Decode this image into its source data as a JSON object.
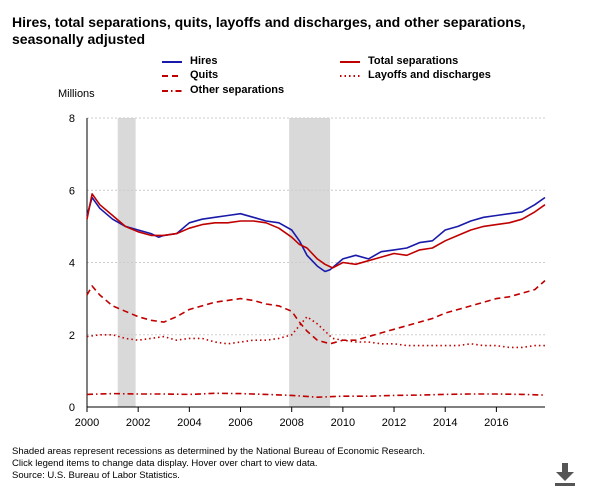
{
  "title_line1": "Hires, total separations, quits, layoffs and discharges, and other separations,",
  "title_line2": "seasonally adjusted",
  "legend": {
    "hires": "Hires",
    "total": "Total separations",
    "quits": "Quits",
    "layoffs": "Layoffs and discharges",
    "other": "Other separations"
  },
  "unit_label": "Millions",
  "notes": {
    "line1": "Shaded areas represent recessions as determined by the National Bureau of Economic Research.",
    "line2": "Click legend items to change data display. Hover over chart to view data.",
    "line3": "Source: U.S. Bureau of Labor Statistics."
  },
  "colors": {
    "hires": "#1a1aaa",
    "separations": "#c00000",
    "recession": "#d9d9d9"
  },
  "icons": {
    "download": "download-icon"
  },
  "chart_data": {
    "type": "line",
    "xlim": [
      2000,
      2017.9
    ],
    "ylim": [
      0,
      8
    ],
    "yticks": [
      "0",
      "2",
      "4",
      "6",
      "8"
    ],
    "xticks": [
      {
        "value": 2000,
        "label": "2000"
      },
      {
        "value": 2002,
        "label": "2002"
      },
      {
        "value": 2004,
        "label": "2004"
      },
      {
        "value": 2006,
        "label": "2006"
      },
      {
        "value": 2008,
        "label": "2008"
      },
      {
        "value": 2010,
        "label": "2010"
      },
      {
        "value": 2012,
        "label": "2012"
      },
      {
        "value": 2014,
        "label": "2014"
      },
      {
        "value": 2016,
        "label": "2016"
      }
    ],
    "recessions": [
      [
        2001.2,
        2001.9
      ],
      [
        2007.9,
        2009.5
      ]
    ],
    "series": [
      {
        "name": "Hires",
        "style": "solid",
        "color": "#1a1aaa",
        "x": [
          2000.0,
          2000.2,
          2000.5,
          2001.0,
          2001.5,
          2002.0,
          2002.5,
          2002.8,
          2003.0,
          2003.5,
          2004.0,
          2004.5,
          2005.0,
          2005.5,
          2006.0,
          2006.5,
          2007.0,
          2007.5,
          2008.0,
          2008.3,
          2008.6,
          2009.0,
          2009.3,
          2009.5,
          2010.0,
          2010.5,
          2011.0,
          2011.5,
          2012.0,
          2012.5,
          2013.0,
          2013.5,
          2014.0,
          2014.5,
          2015.0,
          2015.5,
          2016.0,
          2016.5,
          2017.0,
          2017.5,
          2017.9
        ],
        "y": [
          5.3,
          5.8,
          5.5,
          5.2,
          5.0,
          4.9,
          4.8,
          4.7,
          4.75,
          4.8,
          5.1,
          5.2,
          5.25,
          5.3,
          5.35,
          5.25,
          5.15,
          5.1,
          4.9,
          4.6,
          4.2,
          3.9,
          3.75,
          3.8,
          4.1,
          4.2,
          4.1,
          4.3,
          4.35,
          4.4,
          4.55,
          4.6,
          4.9,
          5.0,
          5.15,
          5.25,
          5.3,
          5.35,
          5.4,
          5.6,
          5.8
        ]
      },
      {
        "name": "Total separations",
        "style": "solid",
        "color": "#c00000",
        "x": [
          2000.0,
          2000.2,
          2000.5,
          2001.0,
          2001.5,
          2002.0,
          2002.5,
          2003.0,
          2003.5,
          2004.0,
          2004.5,
          2005.0,
          2005.5,
          2006.0,
          2006.5,
          2007.0,
          2007.5,
          2008.0,
          2008.3,
          2008.6,
          2009.0,
          2009.3,
          2009.6,
          2010.0,
          2010.5,
          2011.0,
          2011.5,
          2012.0,
          2012.5,
          2013.0,
          2013.5,
          2014.0,
          2014.5,
          2015.0,
          2015.5,
          2016.0,
          2016.5,
          2017.0,
          2017.5,
          2017.9
        ],
        "y": [
          5.2,
          5.9,
          5.6,
          5.3,
          5.0,
          4.85,
          4.75,
          4.75,
          4.8,
          4.95,
          5.05,
          5.1,
          5.1,
          5.15,
          5.15,
          5.1,
          4.95,
          4.7,
          4.5,
          4.4,
          4.1,
          3.95,
          3.85,
          4.0,
          3.95,
          4.05,
          4.15,
          4.25,
          4.2,
          4.35,
          4.4,
          4.6,
          4.75,
          4.9,
          5.0,
          5.05,
          5.1,
          5.2,
          5.4,
          5.6
        ]
      },
      {
        "name": "Quits",
        "style": "dashed",
        "color": "#c00000",
        "x": [
          2000.0,
          2000.2,
          2000.5,
          2001.0,
          2001.5,
          2002.0,
          2002.5,
          2003.0,
          2003.5,
          2004.0,
          2004.5,
          2005.0,
          2005.5,
          2006.0,
          2006.5,
          2007.0,
          2007.5,
          2008.0,
          2008.3,
          2008.6,
          2009.0,
          2009.5,
          2010.0,
          2010.5,
          2011.0,
          2011.5,
          2012.0,
          2012.5,
          2013.0,
          2013.5,
          2014.0,
          2014.5,
          2015.0,
          2015.5,
          2016.0,
          2016.5,
          2017.0,
          2017.5,
          2017.9
        ],
        "y": [
          3.1,
          3.35,
          3.1,
          2.8,
          2.65,
          2.5,
          2.4,
          2.35,
          2.5,
          2.7,
          2.8,
          2.9,
          2.95,
          3.0,
          2.95,
          2.85,
          2.8,
          2.65,
          2.35,
          2.1,
          1.85,
          1.75,
          1.85,
          1.85,
          1.95,
          2.05,
          2.15,
          2.25,
          2.35,
          2.45,
          2.6,
          2.7,
          2.8,
          2.9,
          3.0,
          3.05,
          3.15,
          3.25,
          3.5
        ]
      },
      {
        "name": "Layoffs and discharges",
        "style": "dotted",
        "color": "#c00000",
        "x": [
          2000.0,
          2000.5,
          2001.0,
          2001.5,
          2002.0,
          2002.5,
          2003.0,
          2003.5,
          2004.0,
          2004.5,
          2005.0,
          2005.5,
          2006.0,
          2006.5,
          2007.0,
          2007.5,
          2008.0,
          2008.3,
          2008.6,
          2009.0,
          2009.3,
          2009.6,
          2010.0,
          2010.5,
          2011.0,
          2011.5,
          2012.0,
          2012.5,
          2013.0,
          2013.5,
          2014.0,
          2014.5,
          2015.0,
          2015.5,
          2016.0,
          2016.5,
          2017.0,
          2017.5,
          2017.9
        ],
        "y": [
          1.95,
          2.0,
          2.0,
          1.9,
          1.85,
          1.9,
          1.95,
          1.85,
          1.9,
          1.9,
          1.8,
          1.75,
          1.8,
          1.85,
          1.85,
          1.9,
          2.0,
          2.25,
          2.5,
          2.3,
          2.1,
          1.9,
          1.85,
          1.8,
          1.8,
          1.75,
          1.75,
          1.7,
          1.7,
          1.7,
          1.7,
          1.7,
          1.75,
          1.7,
          1.7,
          1.65,
          1.65,
          1.7,
          1.7
        ]
      },
      {
        "name": "Other separations",
        "style": "dashdot",
        "color": "#c00000",
        "x": [
          2000.0,
          2001.0,
          2002.0,
          2003.0,
          2004.0,
          2005.0,
          2006.0,
          2007.0,
          2008.0,
          2009.0,
          2010.0,
          2011.0,
          2012.0,
          2013.0,
          2014.0,
          2015.0,
          2016.0,
          2017.0,
          2017.9
        ],
        "y": [
          0.35,
          0.37,
          0.36,
          0.36,
          0.35,
          0.38,
          0.37,
          0.35,
          0.32,
          0.27,
          0.3,
          0.3,
          0.32,
          0.33,
          0.35,
          0.36,
          0.36,
          0.35,
          0.33
        ]
      }
    ]
  }
}
